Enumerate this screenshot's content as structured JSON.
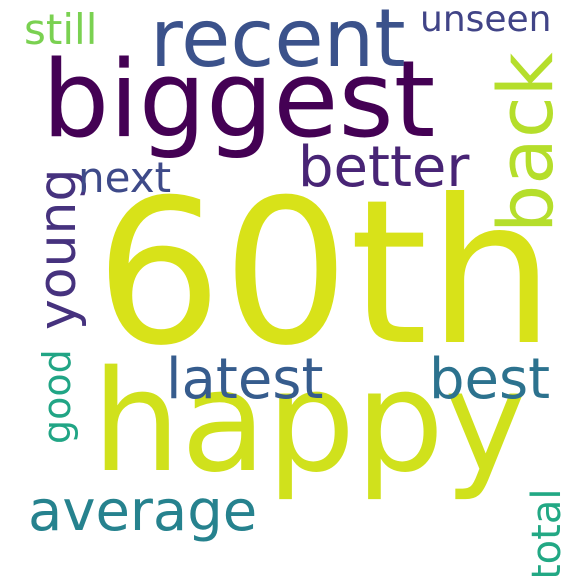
{
  "words": [
    {
      "key": "60th",
      "text": "60th",
      "color": "#d8e219"
    },
    {
      "key": "happy",
      "text": "happy",
      "color": "#d0e11c"
    },
    {
      "key": "biggest",
      "text": "biggest",
      "color": "#440154"
    },
    {
      "key": "recent",
      "text": "recent",
      "color": "#3b528b"
    },
    {
      "key": "back",
      "text": "back",
      "color": "#b5de2b"
    },
    {
      "key": "better",
      "text": "better",
      "color": "#482475"
    },
    {
      "key": "young",
      "text": "young",
      "color": "#46327e"
    },
    {
      "key": "latest",
      "text": "latest",
      "color": "#365c8d"
    },
    {
      "key": "best",
      "text": "best",
      "color": "#2c728e"
    },
    {
      "key": "average",
      "text": "average",
      "color": "#26828e"
    },
    {
      "key": "still",
      "text": "still",
      "color": "#7ad151"
    },
    {
      "key": "unseen",
      "text": "unseen",
      "color": "#414487"
    },
    {
      "key": "next",
      "text": "next",
      "color": "#3e4a89"
    },
    {
      "key": "good",
      "text": "good",
      "color": "#21a585"
    },
    {
      "key": "total",
      "text": "total",
      "color": "#22a884"
    }
  ]
}
